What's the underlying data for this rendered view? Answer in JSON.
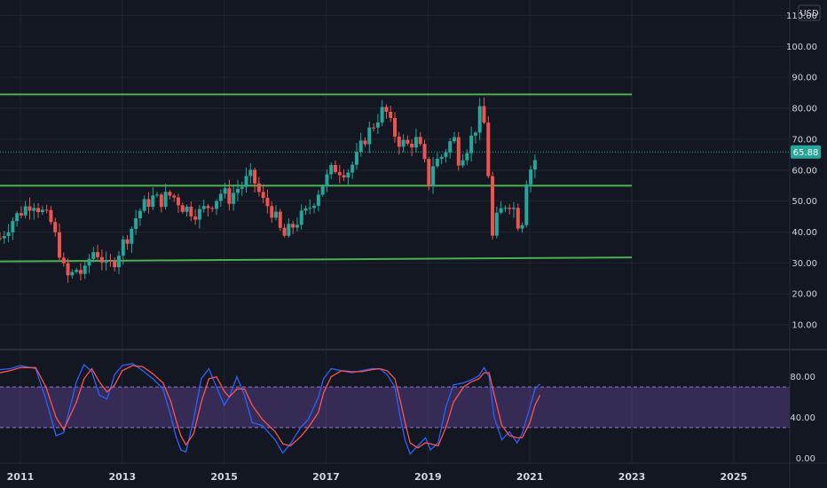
{
  "currency": "USD",
  "current_price_label": "65.88",
  "colors": {
    "background": "#131722",
    "grid": "#1f2430",
    "up": "#26a69a",
    "down": "#ef5350",
    "level": "#4caf50",
    "k_line": "#2962ff",
    "d_line": "#ff5252",
    "band": "#7e57c2",
    "text": "#d1d4dc"
  },
  "chart_data": [
    {
      "type": "candlestick",
      "interval": "monthly",
      "xlim": [
        2010.6,
        2026.1
      ],
      "ylim": [
        2.0,
        115.0
      ],
      "y_ticks": [
        "110.00",
        "100.00",
        "90.00",
        "80.00",
        "70.00",
        "60.00",
        "50.00",
        "40.00",
        "30.00",
        "20.00",
        "10.00"
      ],
      "x_ticks": [
        "2011",
        "2013",
        "2015",
        "2017",
        "2019",
        "2021",
        "2023",
        "2025"
      ],
      "current_price": 65.88,
      "levels": [
        {
          "y": 84.5,
          "x_start": 2010.6,
          "x_end": 2023.0
        },
        {
          "y": 55.0,
          "x_start": 2010.6,
          "x_end": 2023.0
        },
        {
          "y": [
            30.5,
            31.8
          ],
          "x_start": 2010.6,
          "x_end": 2023.0
        }
      ],
      "anchor_closes": [
        [
          2010.6,
          38
        ],
        [
          2010.85,
          44
        ],
        [
          2011.1,
          48
        ],
        [
          2011.25,
          50
        ],
        [
          2011.45,
          46
        ],
        [
          2011.6,
          43
        ],
        [
          2011.75,
          35
        ],
        [
          2011.85,
          28
        ],
        [
          2011.95,
          25
        ],
        [
          2012.1,
          28
        ],
        [
          2012.25,
          26
        ],
        [
          2012.4,
          34
        ],
        [
          2012.55,
          33
        ],
        [
          2012.7,
          28
        ],
        [
          2012.85,
          31
        ],
        [
          2013.0,
          36
        ],
        [
          2013.15,
          40
        ],
        [
          2013.3,
          46
        ],
        [
          2013.45,
          49
        ],
        [
          2013.6,
          51
        ],
        [
          2013.75,
          50
        ],
        [
          2013.9,
          52
        ],
        [
          2014.05,
          51
        ],
        [
          2014.2,
          48
        ],
        [
          2014.35,
          47
        ],
        [
          2014.5,
          46
        ],
        [
          2014.65,
          48
        ],
        [
          2014.8,
          50
        ],
        [
          2014.95,
          53
        ],
        [
          2015.1,
          51
        ],
        [
          2015.25,
          54
        ],
        [
          2015.35,
          55
        ],
        [
          2015.5,
          58
        ],
        [
          2015.6,
          56
        ],
        [
          2015.75,
          50
        ],
        [
          2015.9,
          48
        ],
        [
          2016.05,
          43
        ],
        [
          2016.15,
          38
        ],
        [
          2016.3,
          41
        ],
        [
          2016.45,
          44
        ],
        [
          2016.6,
          46
        ],
        [
          2016.75,
          50
        ],
        [
          2016.9,
          55
        ],
        [
          2017.0,
          57
        ],
        [
          2017.15,
          61
        ],
        [
          2017.3,
          60
        ],
        [
          2017.45,
          60
        ],
        [
          2017.6,
          64
        ],
        [
          2017.75,
          70
        ],
        [
          2017.9,
          74
        ],
        [
          2018.05,
          78
        ],
        [
          2018.15,
          80
        ],
        [
          2018.3,
          73
        ],
        [
          2018.45,
          69
        ],
        [
          2018.6,
          68
        ],
        [
          2018.75,
          70
        ],
        [
          2018.9,
          65
        ],
        [
          2019.0,
          55
        ],
        [
          2019.1,
          62
        ],
        [
          2019.25,
          64
        ],
        [
          2019.4,
          68
        ],
        [
          2019.5,
          71
        ],
        [
          2019.6,
          64
        ],
        [
          2019.75,
          67
        ],
        [
          2019.9,
          72
        ],
        [
          2020.05,
          80
        ],
        [
          2020.15,
          70
        ],
        [
          2020.25,
          37
        ],
        [
          2020.35,
          44
        ],
        [
          2020.5,
          49
        ],
        [
          2020.65,
          50
        ],
        [
          2020.75,
          43
        ],
        [
          2020.85,
          44
        ],
        [
          2020.95,
          60
        ],
        [
          2021.05,
          61
        ],
        [
          2021.15,
          65.88
        ]
      ],
      "stochastic": {
        "ylim": [
          -5,
          105
        ],
        "y_ticks": [
          "80.00",
          "40.00",
          "0.00"
        ],
        "band": [
          30,
          70
        ],
        "k": [
          [
            2010.6,
            87
          ],
          [
            2010.8,
            88
          ],
          [
            2011.0,
            91
          ],
          [
            2011.3,
            88
          ],
          [
            2011.5,
            58
          ],
          [
            2011.7,
            22
          ],
          [
            2011.85,
            25
          ],
          [
            2012.1,
            75
          ],
          [
            2012.25,
            92
          ],
          [
            2012.4,
            85
          ],
          [
            2012.55,
            62
          ],
          [
            2012.7,
            58
          ],
          [
            2012.85,
            82
          ],
          [
            2013.0,
            91
          ],
          [
            2013.2,
            93
          ],
          [
            2013.4,
            86
          ],
          [
            2013.6,
            78
          ],
          [
            2013.8,
            68
          ],
          [
            2013.95,
            42
          ],
          [
            2014.05,
            22
          ],
          [
            2014.15,
            8
          ],
          [
            2014.25,
            6
          ],
          [
            2014.4,
            38
          ],
          [
            2014.55,
            78
          ],
          [
            2014.7,
            88
          ],
          [
            2014.85,
            70
          ],
          [
            2015.0,
            52
          ],
          [
            2015.1,
            60
          ],
          [
            2015.25,
            80
          ],
          [
            2015.4,
            62
          ],
          [
            2015.55,
            35
          ],
          [
            2015.75,
            32
          ],
          [
            2016.0,
            18
          ],
          [
            2016.15,
            5
          ],
          [
            2016.3,
            14
          ],
          [
            2016.5,
            30
          ],
          [
            2016.65,
            38
          ],
          [
            2016.85,
            60
          ],
          [
            2016.95,
            78
          ],
          [
            2017.1,
            88
          ],
          [
            2017.3,
            86
          ],
          [
            2017.5,
            84
          ],
          [
            2017.7,
            86
          ],
          [
            2017.9,
            88
          ],
          [
            2018.05,
            88
          ],
          [
            2018.2,
            82
          ],
          [
            2018.35,
            70
          ],
          [
            2018.45,
            42
          ],
          [
            2018.55,
            18
          ],
          [
            2018.65,
            4
          ],
          [
            2018.8,
            12
          ],
          [
            2018.95,
            20
          ],
          [
            2019.05,
            8
          ],
          [
            2019.2,
            15
          ],
          [
            2019.35,
            50
          ],
          [
            2019.5,
            72
          ],
          [
            2019.7,
            74
          ],
          [
            2019.85,
            77
          ],
          [
            2020.0,
            81
          ],
          [
            2020.1,
            89
          ],
          [
            2020.2,
            80
          ],
          [
            2020.3,
            40
          ],
          [
            2020.45,
            18
          ],
          [
            2020.6,
            26
          ],
          [
            2020.75,
            15
          ],
          [
            2020.85,
            24
          ],
          [
            2021.0,
            50
          ],
          [
            2021.1,
            68
          ],
          [
            2021.2,
            73
          ]
        ],
        "d": [
          [
            2010.6,
            84
          ],
          [
            2010.8,
            86
          ],
          [
            2011.0,
            89
          ],
          [
            2011.3,
            89
          ],
          [
            2011.5,
            70
          ],
          [
            2011.7,
            40
          ],
          [
            2011.85,
            28
          ],
          [
            2012.1,
            55
          ],
          [
            2012.25,
            78
          ],
          [
            2012.4,
            88
          ],
          [
            2012.55,
            75
          ],
          [
            2012.7,
            65
          ],
          [
            2012.85,
            72
          ],
          [
            2013.0,
            86
          ],
          [
            2013.2,
            91
          ],
          [
            2013.4,
            90
          ],
          [
            2013.6,
            83
          ],
          [
            2013.8,
            74
          ],
          [
            2013.95,
            56
          ],
          [
            2014.05,
            38
          ],
          [
            2014.15,
            22
          ],
          [
            2014.25,
            13
          ],
          [
            2014.4,
            24
          ],
          [
            2014.55,
            55
          ],
          [
            2014.7,
            78
          ],
          [
            2014.85,
            80
          ],
          [
            2015.0,
            66
          ],
          [
            2015.1,
            60
          ],
          [
            2015.25,
            68
          ],
          [
            2015.4,
            68
          ],
          [
            2015.55,
            52
          ],
          [
            2015.75,
            38
          ],
          [
            2016.0,
            26
          ],
          [
            2016.15,
            14
          ],
          [
            2016.3,
            12
          ],
          [
            2016.5,
            21
          ],
          [
            2016.65,
            30
          ],
          [
            2016.85,
            45
          ],
          [
            2016.95,
            64
          ],
          [
            2017.1,
            80
          ],
          [
            2017.3,
            86
          ],
          [
            2017.5,
            85
          ],
          [
            2017.7,
            85
          ],
          [
            2017.9,
            87
          ],
          [
            2018.05,
            88
          ],
          [
            2018.2,
            86
          ],
          [
            2018.35,
            78
          ],
          [
            2018.45,
            58
          ],
          [
            2018.55,
            35
          ],
          [
            2018.65,
            15
          ],
          [
            2018.8,
            10
          ],
          [
            2018.95,
            15
          ],
          [
            2019.05,
            14
          ],
          [
            2019.2,
            12
          ],
          [
            2019.35,
            30
          ],
          [
            2019.5,
            55
          ],
          [
            2019.7,
            70
          ],
          [
            2019.85,
            75
          ],
          [
            2020.0,
            78
          ],
          [
            2020.1,
            84
          ],
          [
            2020.2,
            84
          ],
          [
            2020.3,
            62
          ],
          [
            2020.45,
            32
          ],
          [
            2020.6,
            22
          ],
          [
            2020.75,
            20
          ],
          [
            2020.85,
            20
          ],
          [
            2021.0,
            35
          ],
          [
            2021.1,
            52
          ],
          [
            2021.2,
            62
          ]
        ]
      }
    }
  ]
}
